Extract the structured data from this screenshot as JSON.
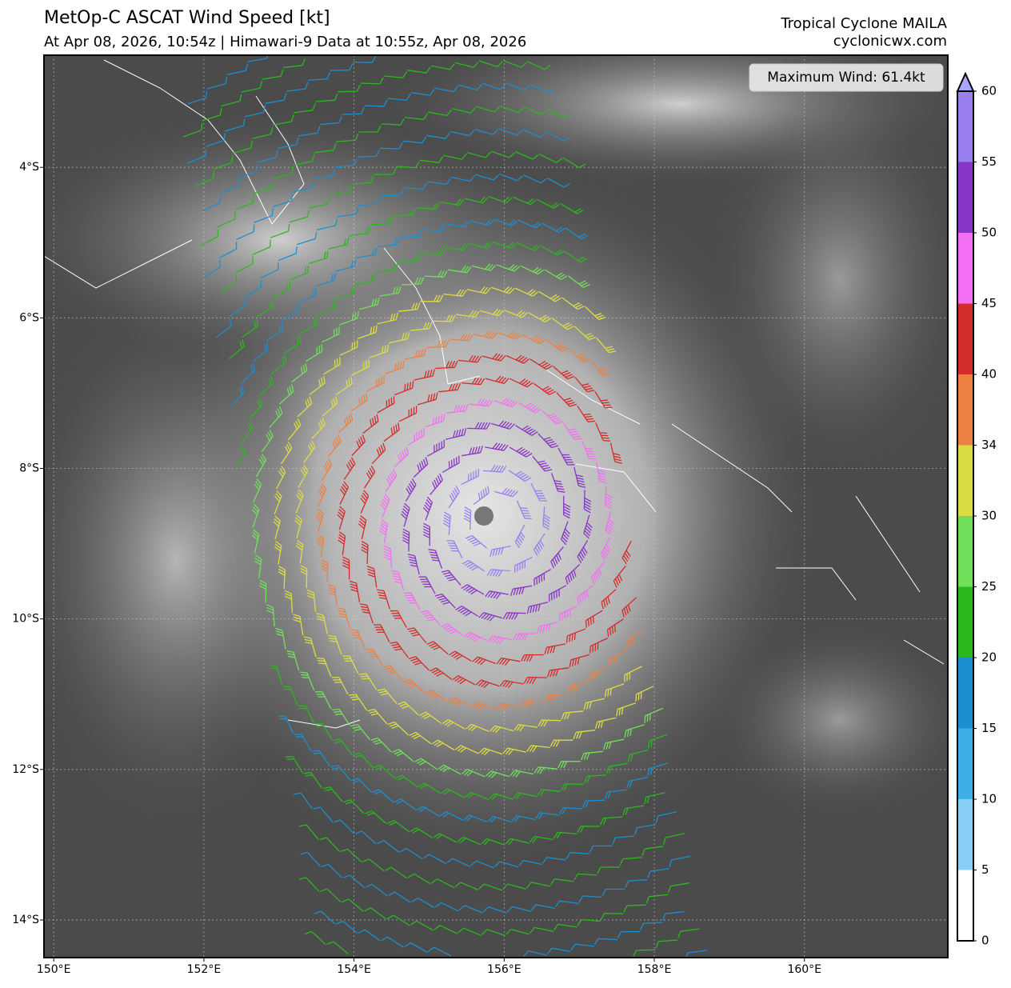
{
  "header": {
    "title": "MetOp-C ASCAT Wind Speed [kt]",
    "subtitle": "At Apr 08, 2026, 10:54z | Himawari-9 Data at 10:55z, Apr 08, 2026",
    "storm": "Tropical Cyclone MAILA",
    "site": "cyclonicwx.com"
  },
  "map": {
    "max_wind": "Maximum Wind: 61.4kt",
    "xlim": [
      149.87,
      161.91
    ],
    "ylim": [
      -2.51,
      -14.5
    ],
    "xticks": [
      {
        "value": 150,
        "label": "150°E"
      },
      {
        "value": 152,
        "label": "152°E"
      },
      {
        "value": 154,
        "label": "154°E"
      },
      {
        "value": 156,
        "label": "156°E"
      },
      {
        "value": 158,
        "label": "158°E"
      },
      {
        "value": 160,
        "label": "160°E"
      }
    ],
    "yticks": [
      {
        "value": -4,
        "label": "4°S"
      },
      {
        "value": -6,
        "label": "6°S"
      },
      {
        "value": -8,
        "label": "8°S"
      },
      {
        "value": -10,
        "label": "10°S"
      },
      {
        "value": -12,
        "label": "12°S"
      },
      {
        "value": -14,
        "label": "14°S"
      }
    ],
    "grid": true
  },
  "colorbar": {
    "ticks": [
      0,
      5,
      10,
      15,
      20,
      25,
      30,
      34,
      40,
      45,
      50,
      55,
      60
    ],
    "colors": [
      "#ffffff",
      "#87cff5",
      "#3eaee8",
      "#1d8ecf",
      "#2bb81c",
      "#70e05a",
      "#dcdc44",
      "#ec8142",
      "#d42b2b",
      "#f46ff4",
      "#8935c6",
      "#9a7fee"
    ],
    "extend_color": "#a9a6ff"
  }
}
